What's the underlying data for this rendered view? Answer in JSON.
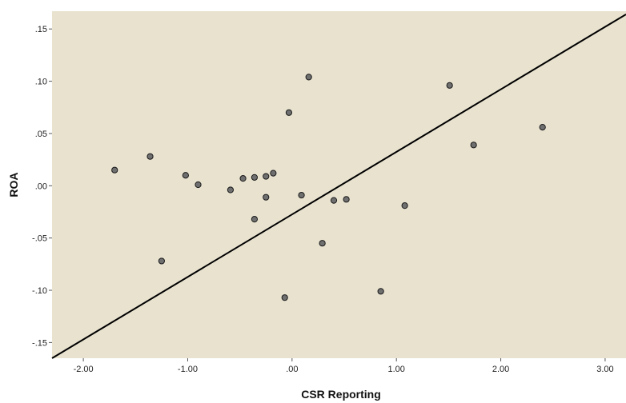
{
  "chart_data": {
    "type": "scatter",
    "title": "",
    "xlabel": "CSR Reporting",
    "ylabel": "ROA",
    "xlim": [
      -2.3,
      3.2
    ],
    "ylim": [
      -0.165,
      0.167
    ],
    "grid": false,
    "legend": "none",
    "plot_background": "#e8e2cf",
    "point_color": "#6f6f6f",
    "line_color": "#000000",
    "x_ticks": [
      {
        "value": -2.0,
        "label": "-2.00"
      },
      {
        "value": -1.0,
        "label": "-1.00"
      },
      {
        "value": 0.0,
        "label": ".00"
      },
      {
        "value": 1.0,
        "label": "1.00"
      },
      {
        "value": 2.0,
        "label": "2.00"
      },
      {
        "value": 3.0,
        "label": "3.00"
      }
    ],
    "y_ticks": [
      {
        "value": 0.15,
        "label": ".15"
      },
      {
        "value": 0.1,
        "label": ".10"
      },
      {
        "value": 0.05,
        "label": ".05"
      },
      {
        "value": 0.0,
        "label": ".00"
      },
      {
        "value": -0.05,
        "label": "-.05"
      },
      {
        "value": -0.1,
        "label": "-.10"
      },
      {
        "value": -0.15,
        "label": "-.15"
      }
    ],
    "points": [
      {
        "x": -1.7,
        "y": 0.015
      },
      {
        "x": -1.36,
        "y": 0.028
      },
      {
        "x": -1.25,
        "y": -0.072
      },
      {
        "x": -1.02,
        "y": 0.01
      },
      {
        "x": -0.9,
        "y": 0.001
      },
      {
        "x": -0.59,
        "y": -0.004
      },
      {
        "x": -0.47,
        "y": 0.007
      },
      {
        "x": -0.36,
        "y": 0.008
      },
      {
        "x": -0.36,
        "y": -0.032
      },
      {
        "x": -0.25,
        "y": 0.009
      },
      {
        "x": -0.25,
        "y": -0.011
      },
      {
        "x": -0.18,
        "y": 0.012
      },
      {
        "x": -0.07,
        "y": -0.107
      },
      {
        "x": -0.03,
        "y": 0.07
      },
      {
        "x": 0.09,
        "y": -0.009
      },
      {
        "x": 0.16,
        "y": 0.104
      },
      {
        "x": 0.29,
        "y": -0.055
      },
      {
        "x": 0.4,
        "y": -0.014
      },
      {
        "x": 0.52,
        "y": -0.013
      },
      {
        "x": 0.85,
        "y": -0.101
      },
      {
        "x": 1.08,
        "y": -0.019
      },
      {
        "x": 1.51,
        "y": 0.096
      },
      {
        "x": 1.74,
        "y": 0.039
      },
      {
        "x": 2.4,
        "y": 0.056
      }
    ],
    "fit_line": {
      "x": [
        -2.3,
        3.2
      ],
      "y": [
        -0.165,
        0.164
      ]
    }
  }
}
